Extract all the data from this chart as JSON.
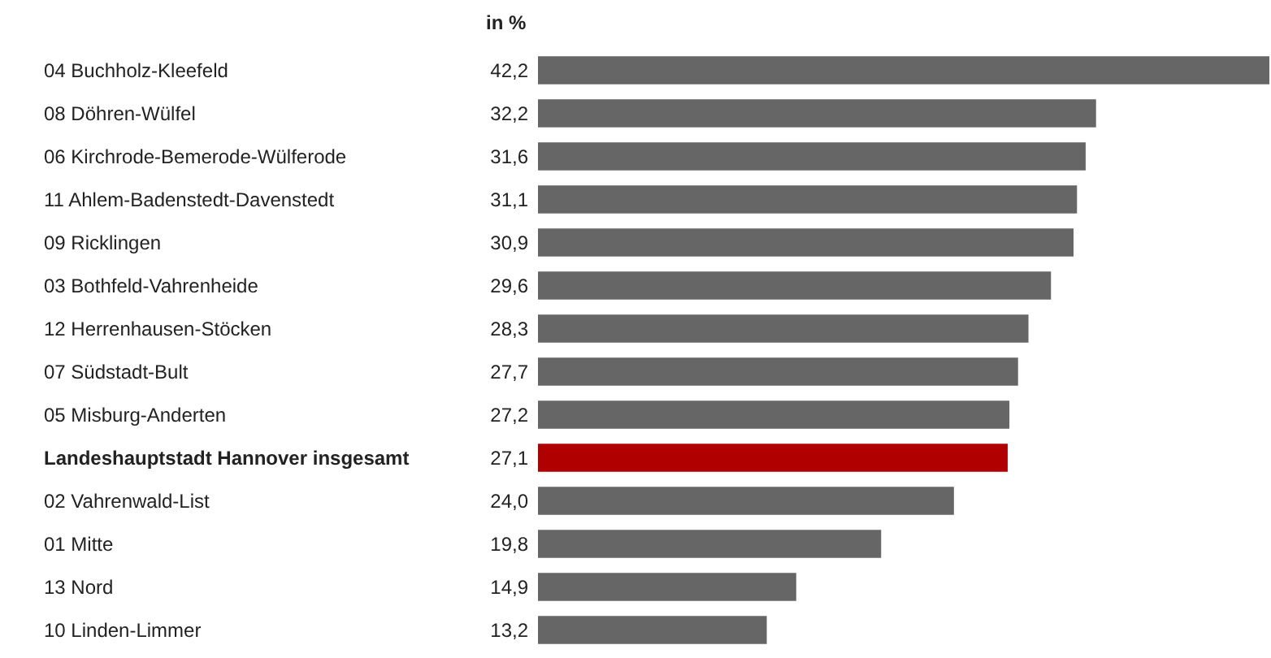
{
  "chart_data": {
    "type": "bar",
    "orientation": "horizontal",
    "xlabel": "in %",
    "categories": [
      "04 Buchholz-Kleefeld",
      "08 Döhren-Wülfel",
      "06 Kirchrode-Bemerode-Wülferode",
      "11 Ahlem-Badenstedt-Davenstedt",
      "09 Ricklingen",
      "03 Bothfeld-Vahrenheide",
      "12 Herrenhausen-Stöcken",
      "07 Südstadt-Bult",
      "05 Misburg-Anderten",
      "Landeshauptstadt Hannover insgesamt",
      "02 Vahrenwald-List",
      "01 Mitte",
      "13 Nord",
      "10 Linden-Limmer"
    ],
    "values": [
      42.2,
      32.2,
      31.6,
      31.1,
      30.9,
      29.6,
      28.3,
      27.7,
      27.2,
      27.1,
      24.0,
      19.8,
      14.9,
      13.2
    ],
    "value_labels": [
      "42,2",
      "32,2",
      "31,6",
      "31,1",
      "30,9",
      "29,6",
      "28,3",
      "27,7",
      "27,2",
      "27,1",
      "24,0",
      "19,8",
      "14,9",
      "13,2"
    ],
    "colors": [
      "#666666",
      "#666666",
      "#666666",
      "#666666",
      "#666666",
      "#666666",
      "#666666",
      "#666666",
      "#666666",
      "#b00000",
      "#666666",
      "#666666",
      "#666666",
      "#666666"
    ],
    "xlim": [
      0,
      42.2
    ]
  }
}
